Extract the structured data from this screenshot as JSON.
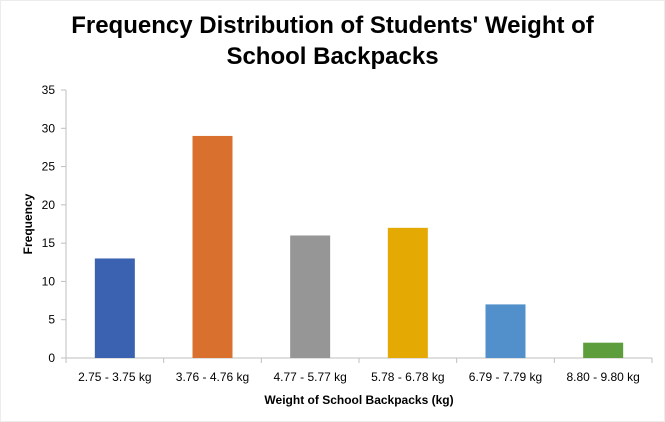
{
  "chart_data": {
    "type": "bar",
    "title": "Frequency Distribution of Students' Weight of School Backpacks",
    "xlabel": "Weight of School Backpacks (kg)",
    "ylabel": "Frequency",
    "categories": [
      "2.75 - 3.75 kg",
      "3.76 - 4.76 kg",
      "4.77 - 5.77 kg",
      "5.78 - 6.78 kg",
      "6.79 - 7.79 kg",
      "8.80 - 9.80 kg"
    ],
    "values": [
      13,
      29,
      16,
      17,
      7,
      2
    ],
    "colors": [
      "#3a62b0",
      "#d9702e",
      "#969696",
      "#e5a903",
      "#5190cb",
      "#5e9d3c"
    ],
    "ylim": [
      0,
      35
    ],
    "yticks": [
      0,
      5,
      10,
      15,
      20,
      25,
      30,
      35
    ],
    "grid": false,
    "legend": "none"
  }
}
